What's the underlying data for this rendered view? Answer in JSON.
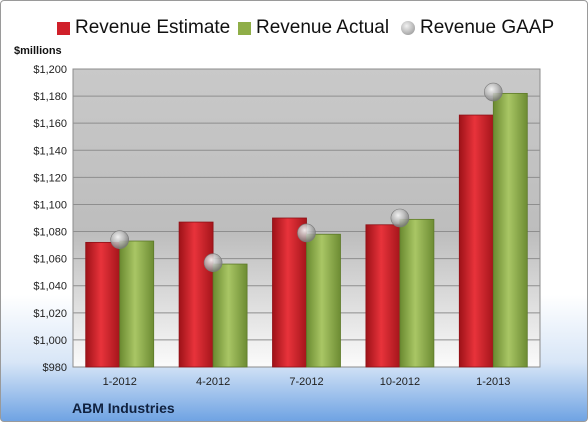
{
  "legend": {
    "estimate": "Revenue Estimate",
    "actual": "Revenue Actual",
    "gaap": "Revenue GAAP"
  },
  "units": "$millions",
  "company": "ABM Industries",
  "colors": {
    "estimate": "#d0202a",
    "actual": "#8fae48",
    "gaap": "#b8b8b8"
  },
  "chart_data": {
    "type": "bar",
    "categories": [
      "1-2012",
      "4-2012",
      "7-2012",
      "10-2012",
      "1-2013"
    ],
    "series": [
      {
        "name": "Revenue Estimate",
        "values": [
          1072,
          1087,
          1090,
          1085,
          1166
        ]
      },
      {
        "name": "Revenue Actual",
        "values": [
          1073,
          1056,
          1078,
          1089,
          1182
        ]
      },
      {
        "name": "Revenue GAAP",
        "values": [
          1074,
          1057,
          1079,
          1090,
          1183
        ]
      }
    ],
    "ylabel": "$millions",
    "ylim": [
      980,
      1200
    ],
    "ytick_step": 20,
    "ytick_labels": [
      "$980",
      "$1,000",
      "$1,020",
      "$1,040",
      "$1,060",
      "$1,080",
      "$1,100",
      "$1,120",
      "$1,140",
      "$1,160",
      "$1,180",
      "$1,200"
    ],
    "grid": true,
    "legend_position": "top"
  }
}
